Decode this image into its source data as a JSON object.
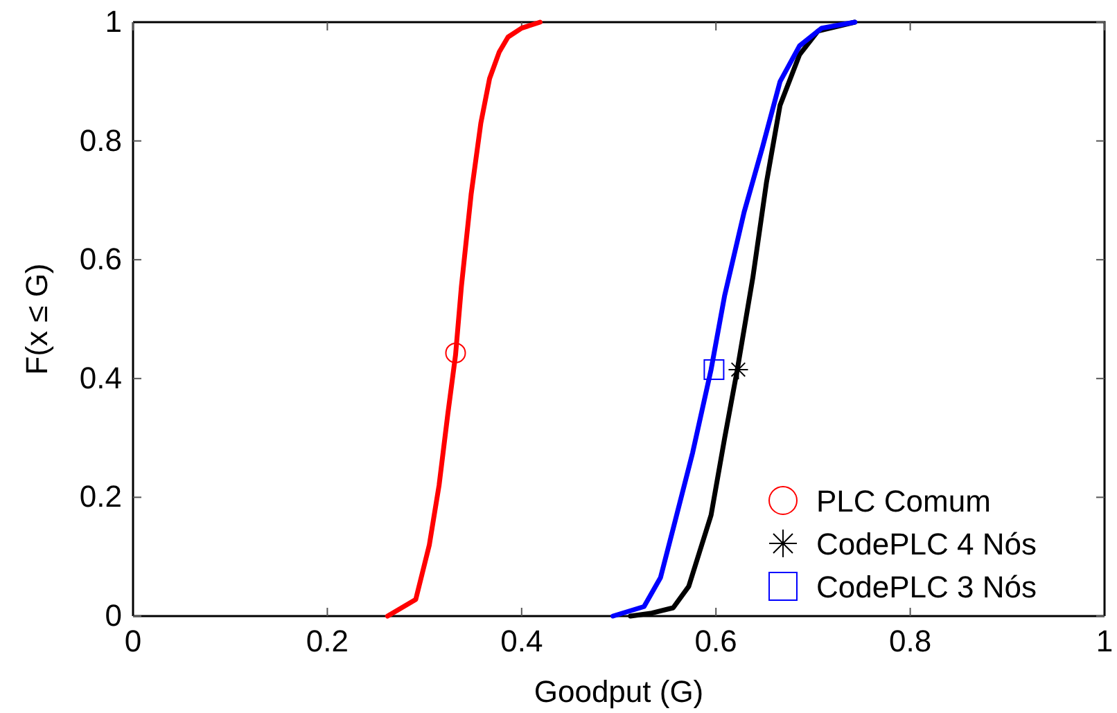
{
  "chart_data": {
    "type": "line",
    "xlabel": "Goodput (G)",
    "ylabel": "F(x ≤ G)",
    "xlim": [
      0,
      1
    ],
    "ylim": [
      0,
      1
    ],
    "xticks": [
      0,
      0.2,
      0.4,
      0.6,
      0.8,
      1
    ],
    "yticks": [
      0,
      0.2,
      0.4,
      0.6,
      0.8,
      1
    ],
    "grid": false,
    "legend": "bottom right",
    "series": [
      {
        "color": "#ff0000",
        "marker": "none",
        "x": [
          0.262,
          0.291,
          0.305,
          0.315,
          0.324,
          0.332,
          0.338,
          0.348,
          0.358,
          0.367,
          0.377,
          0.386,
          0.4,
          0.419
        ],
        "values": [
          0,
          0.028,
          0.12,
          0.22,
          0.34,
          0.44,
          0.555,
          0.71,
          0.83,
          0.905,
          0.95,
          0.975,
          0.99,
          1
        ]
      },
      {
        "color": "#000000",
        "marker": "none",
        "x": [
          0.512,
          0.534,
          0.556,
          0.572,
          0.595,
          0.609,
          0.622,
          0.638,
          0.652,
          0.666,
          0.686,
          0.705,
          0.743
        ],
        "values": [
          0,
          0.005,
          0.014,
          0.05,
          0.17,
          0.3,
          0.415,
          0.57,
          0.73,
          0.86,
          0.945,
          0.985,
          1
        ]
      },
      {
        "color": "#0000ff",
        "marker": "none",
        "x": [
          0.494,
          0.526,
          0.543,
          0.558,
          0.576,
          0.595,
          0.609,
          0.629,
          0.648,
          0.666,
          0.686,
          0.709,
          0.743
        ],
        "values": [
          0,
          0.016,
          0.065,
          0.16,
          0.275,
          0.415,
          0.54,
          0.68,
          0.79,
          0.9,
          0.96,
          0.99,
          1
        ]
      },
      {
        "type": "scatter",
        "name": "PLC Comum",
        "color": "#ff0000",
        "marker": "circle",
        "x": [
          0.332
        ],
        "values": [
          0.443
        ]
      },
      {
        "type": "scatter",
        "name": "CodePLC 4 Nós",
        "color": "#000000",
        "marker": "cross",
        "x": [
          0.623
        ],
        "values": [
          0.415
        ]
      },
      {
        "type": "scatter",
        "name": "CodePLC 3 Nós",
        "color": "#0000ff",
        "marker": "square",
        "x": [
          0.598
        ],
        "values": [
          0.415
        ]
      }
    ]
  }
}
